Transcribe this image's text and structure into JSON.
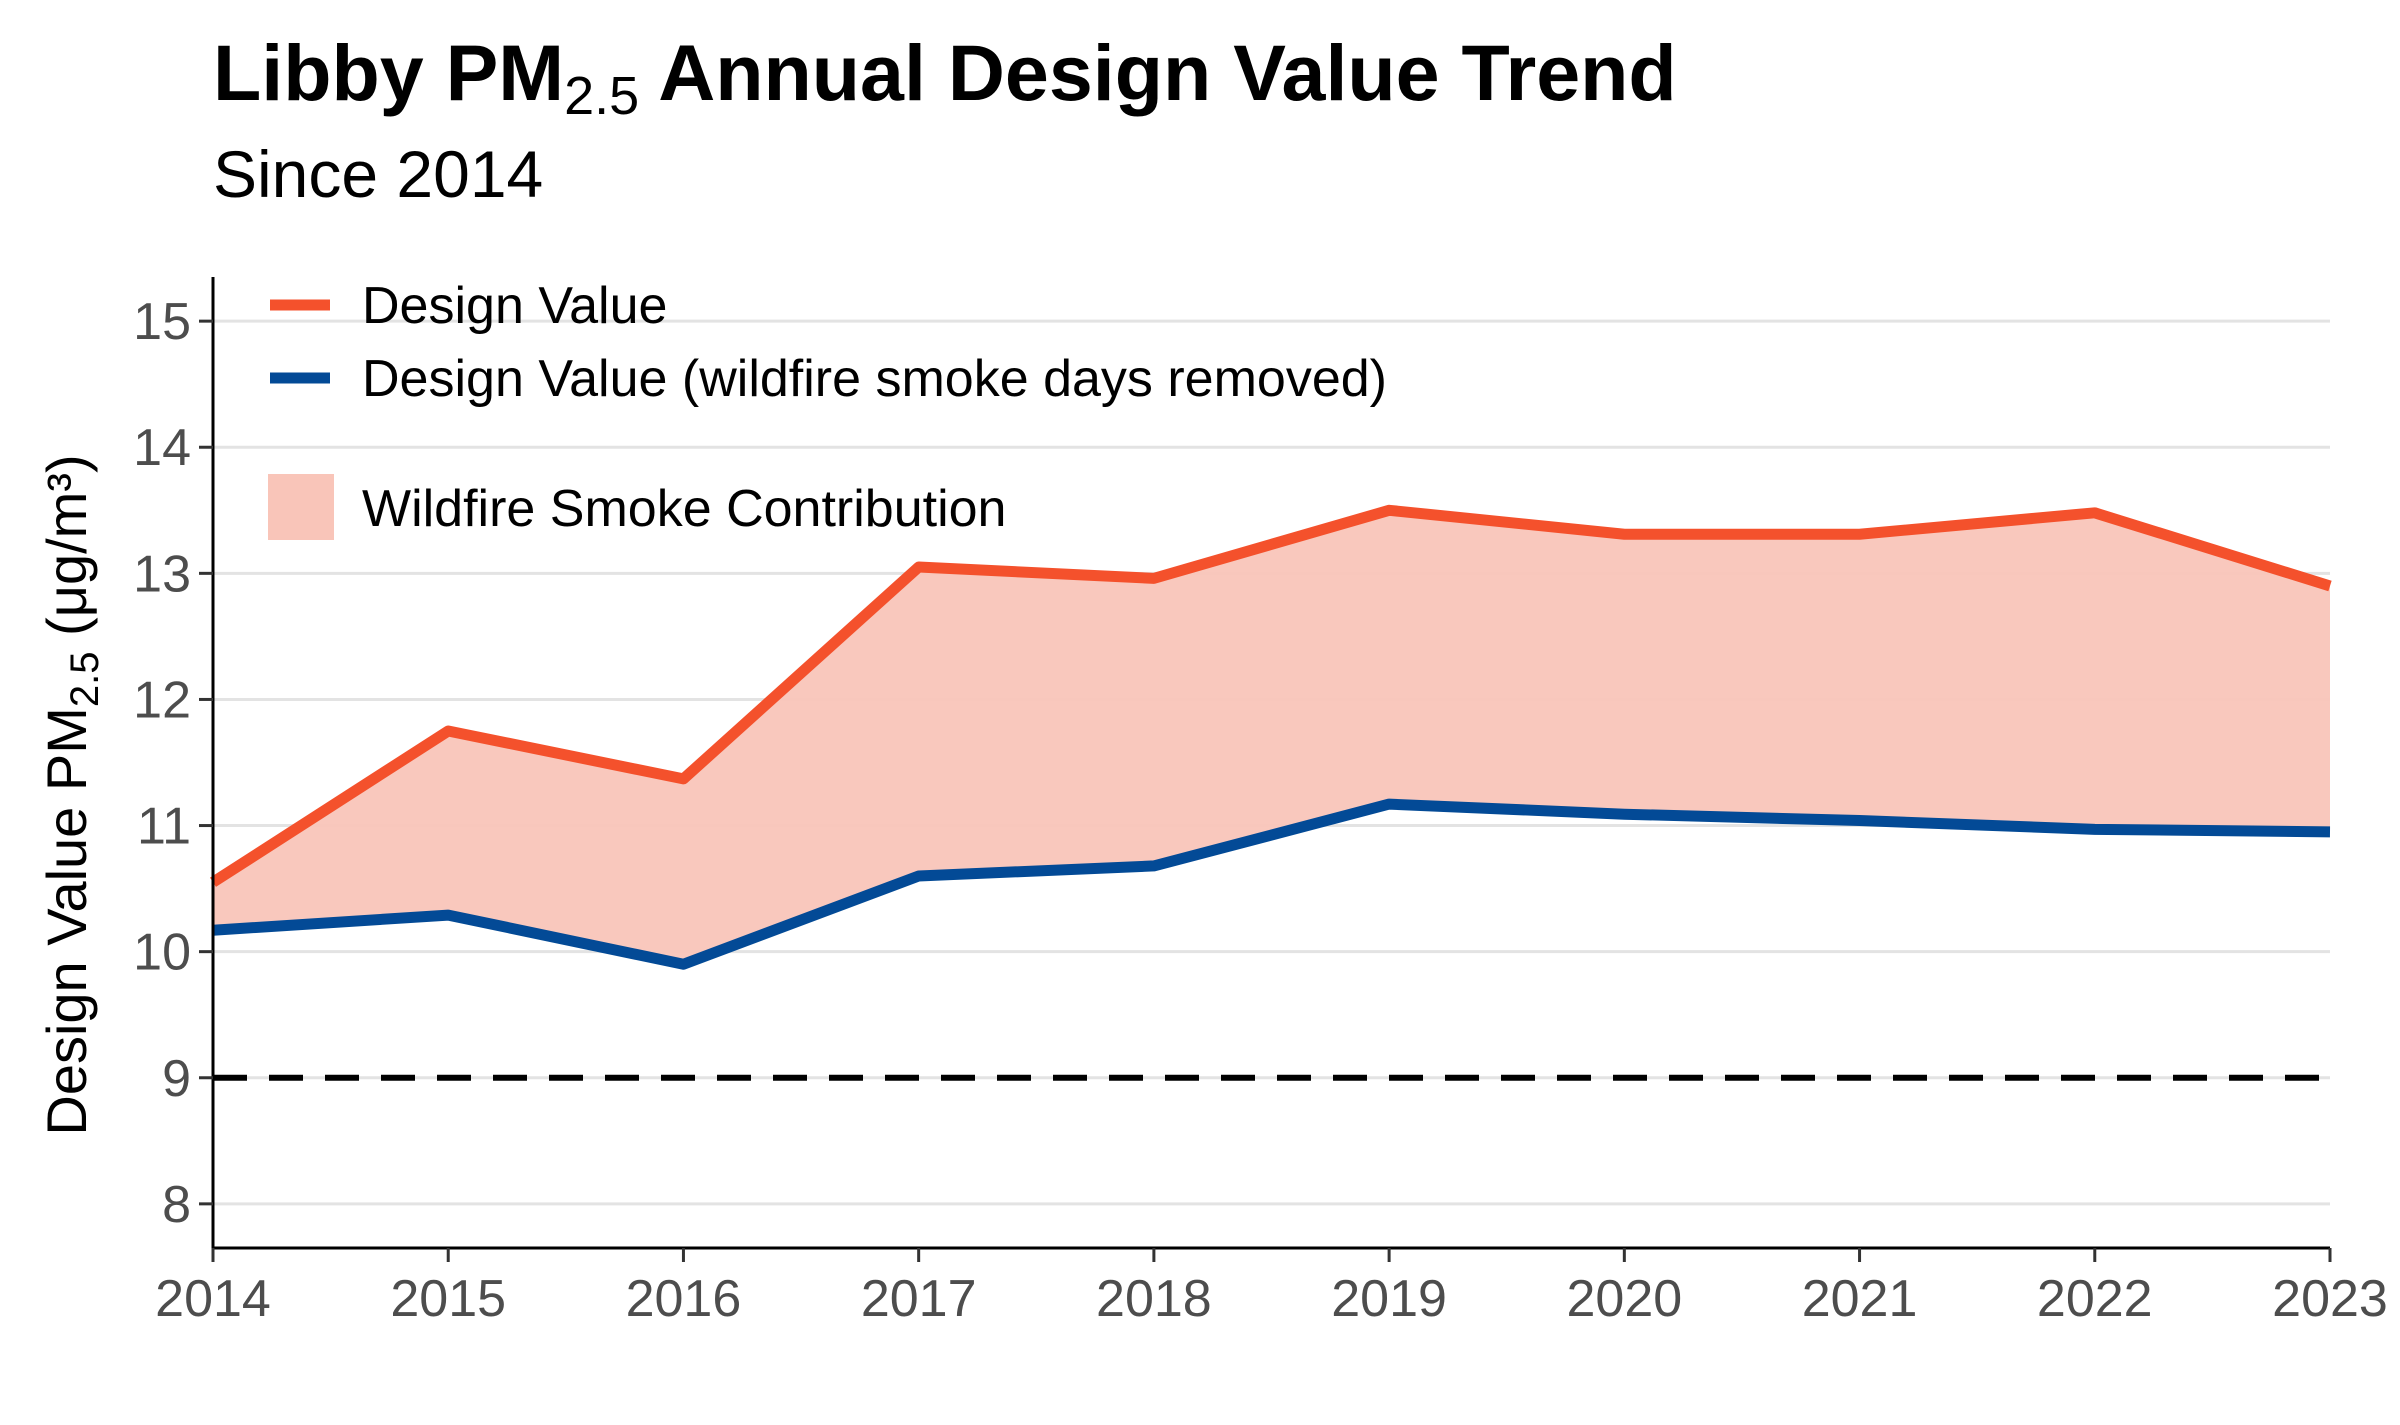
{
  "chart_data": {
    "type": "line",
    "title": "Libby PM",
    "title_sub": "2.5",
    "title_rest": " Annual Design Value Trend",
    "subtitle": "Since 2014",
    "ylabel": "Design Value PM",
    "ylabel_sub": "2.5",
    "ylabel_rest": " (μg/m³)",
    "x": [
      2014,
      2015,
      2016,
      2017,
      2018,
      2019,
      2020,
      2021,
      2022,
      2023
    ],
    "xticks": [
      "2014",
      "2015",
      "2016",
      "2017",
      "2018",
      "2019",
      "2020",
      "2021",
      "2022",
      "2023"
    ],
    "yticks": [
      "8",
      "9",
      "10",
      "11",
      "12",
      "13",
      "14",
      "15"
    ],
    "ylim": [
      7.65,
      15.35
    ],
    "xlim": [
      2014,
      2023
    ],
    "series": [
      {
        "name": "Design Value",
        "color": "#f4512c",
        "values": [
          10.55,
          11.75,
          11.37,
          13.05,
          12.96,
          13.5,
          13.31,
          13.31,
          13.48,
          12.9
        ]
      },
      {
        "name": "Design Value (wildfire smoke days removed)",
        "color": "#034a96",
        "values": [
          10.17,
          10.29,
          9.9,
          10.6,
          10.68,
          11.17,
          11.09,
          11.04,
          10.97,
          10.95
        ]
      }
    ],
    "fill": {
      "name": "Wildfire Smoke Contribution",
      "color": "#f9c5b9"
    },
    "reference_line": {
      "value": 9,
      "style": "dashed",
      "color": "#000000"
    },
    "grid": "horizontal",
    "legend_position": "top-left"
  }
}
